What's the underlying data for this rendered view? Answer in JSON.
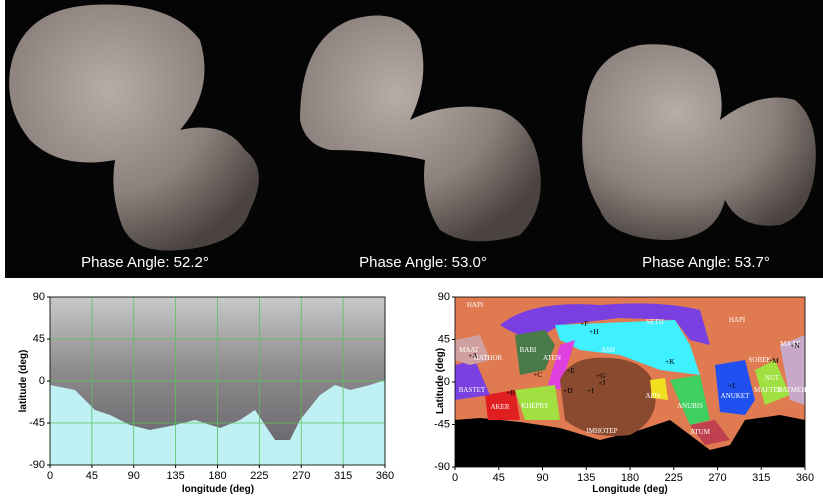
{
  "photos": [
    {
      "label": "Phase Angle: 52.2°"
    },
    {
      "label": "Phase Angle: 53.0°"
    },
    {
      "label": "Phase Angle: 53.7°"
    }
  ],
  "left_map": {
    "x_label": "longitude (deg)",
    "y_label": "latitude (deg)",
    "xticks": [
      0,
      45,
      90,
      135,
      180,
      225,
      270,
      315,
      360
    ],
    "yticks": [
      90,
      45,
      0,
      -45,
      -90
    ]
  },
  "right_map": {
    "x_label": "Longitude (deg)",
    "y_label": "Latitude (deg)",
    "xticks": [
      0,
      45,
      90,
      135,
      180,
      225,
      270,
      315,
      360
    ],
    "yticks": [
      90,
      45,
      0,
      -45,
      -90
    ],
    "regions": [
      "HAPI",
      "SETH",
      "HAPI",
      "BABI",
      "ATEN",
      "ASH",
      "MAAT",
      "HATHOR",
      "BASTET",
      "AKER",
      "KHEPRY",
      "IMHOTEP",
      "APIS",
      "ANUBIS",
      "ATUM",
      "ANUKET",
      "MAFTET",
      "HATMEHIT",
      "SOBEK",
      "NUT",
      "MAAT"
    ],
    "points": [
      "+A",
      "+B",
      "+C",
      "+D",
      "+E",
      "+F",
      "+G",
      "+H",
      "+I",
      "+J",
      "+K",
      "+L",
      "+M",
      "+N"
    ]
  }
}
